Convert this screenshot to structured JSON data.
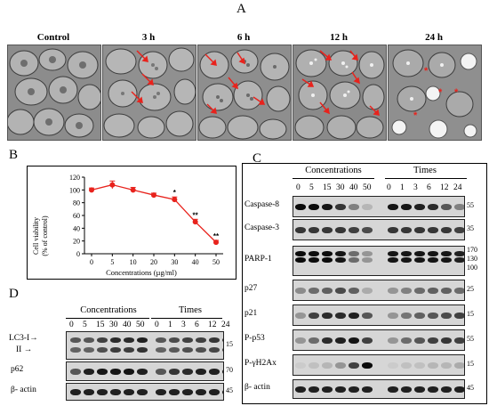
{
  "panels": {
    "A": "A",
    "B": "B",
    "C": "C",
    "D": "D"
  },
  "panel_a": {
    "labels": [
      "Control",
      "3 h",
      "6 h",
      "12 h",
      "24 h"
    ],
    "asterisk": "*"
  },
  "panel_b": {
    "chart_data": {
      "type": "line",
      "x_categories": [
        "0",
        "5",
        "10",
        "20",
        "30",
        "40",
        "50"
      ],
      "values": [
        100,
        108,
        100,
        92,
        85,
        50,
        18
      ],
      "errors": [
        3,
        6,
        4,
        3,
        4,
        4,
        3
      ],
      "annotations": [
        "",
        "",
        "",
        "",
        "*",
        "**",
        "**"
      ],
      "xlabel": "Concentrations (µg/ml)",
      "ylabel_line1": "Cell viability",
      "ylabel_line2": "(% of control)",
      "ylim": [
        0,
        120
      ],
      "yticks": [
        "0",
        "20",
        "40",
        "60",
        "80",
        "100",
        "120"
      ],
      "color": "#e8231d",
      "grid": false
    }
  },
  "panel_c": {
    "group1": "Concentrations",
    "group2": "Times",
    "conc_nums": [
      "0",
      "5",
      "15",
      "30",
      "40",
      "50"
    ],
    "time_nums": [
      "0",
      "1",
      "3",
      "6",
      "12",
      "24"
    ],
    "rows": [
      {
        "label": "Caspase-8",
        "kda": [
          "55"
        ]
      },
      {
        "label": "Caspase-3",
        "kda": [
          "35"
        ]
      },
      {
        "label": "PARP-1",
        "kda": [
          "170",
          "130",
          "100"
        ]
      },
      {
        "label": "p27",
        "kda": [
          "25"
        ]
      },
      {
        "label": "p21",
        "kda": [
          "15"
        ]
      },
      {
        "label": "P-p53",
        "kda": [
          "55"
        ]
      },
      {
        "label": "P-γH2Ax",
        "kda": [
          "15"
        ]
      },
      {
        "label": "β- actin",
        "kda": [
          "45"
        ]
      }
    ]
  },
  "panel_d": {
    "group1": "Concentrations",
    "group2": "Times",
    "conc_nums": [
      "0",
      "5",
      "15",
      "30",
      "40",
      "50"
    ],
    "time_nums": [
      "0",
      "1",
      "3",
      "6",
      "12",
      "24"
    ],
    "lc3_1": "LC3-I",
    "lc3_2": "II",
    "arrow": "→",
    "rows": [
      {
        "label": "p62",
        "kda": [
          "70"
        ]
      },
      {
        "label": "β- actin",
        "kda": [
          "45"
        ]
      }
    ],
    "lc3_kda": "15"
  }
}
